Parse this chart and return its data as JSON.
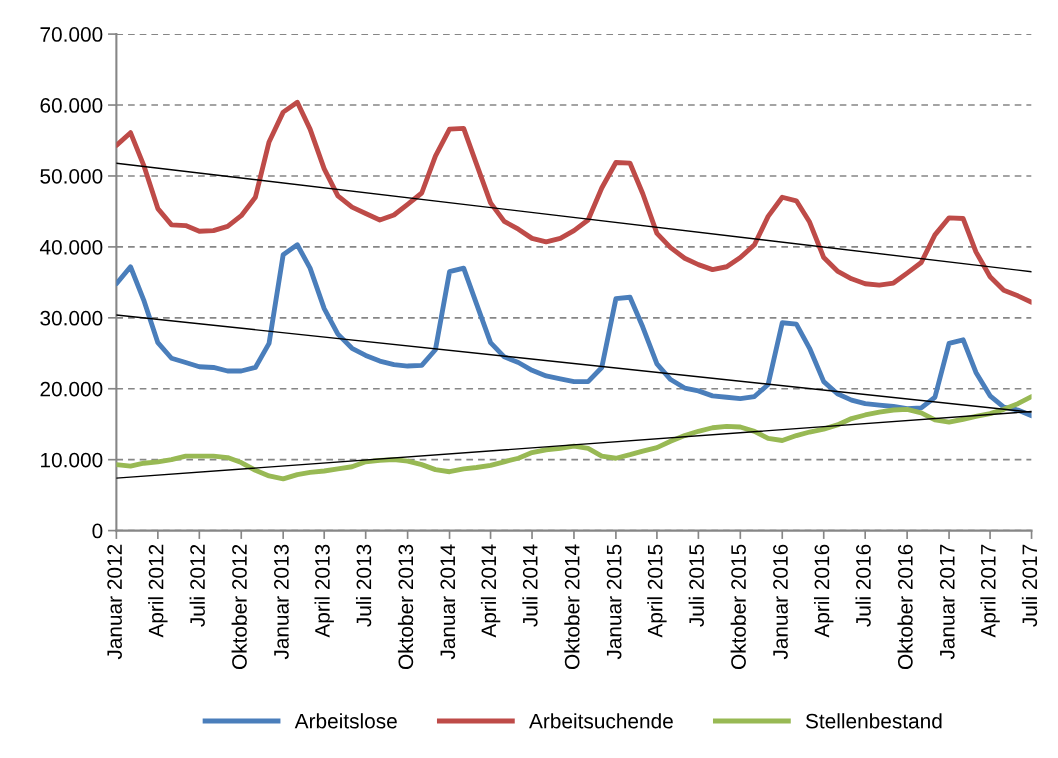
{
  "chart_data": {
    "type": "line",
    "x": [
      "2012-01",
      "2012-02",
      "2012-03",
      "2012-04",
      "2012-05",
      "2012-06",
      "2012-07",
      "2012-08",
      "2012-09",
      "2012-10",
      "2012-11",
      "2012-12",
      "2013-01",
      "2013-02",
      "2013-03",
      "2013-04",
      "2013-05",
      "2013-06",
      "2013-07",
      "2013-08",
      "2013-09",
      "2013-10",
      "2013-11",
      "2013-12",
      "2014-01",
      "2014-02",
      "2014-03",
      "2014-04",
      "2014-05",
      "2014-06",
      "2014-07",
      "2014-08",
      "2014-09",
      "2014-10",
      "2014-11",
      "2014-12",
      "2015-01",
      "2015-02",
      "2015-03",
      "2015-04",
      "2015-05",
      "2015-06",
      "2015-07",
      "2015-08",
      "2015-09",
      "2015-10",
      "2015-11",
      "2015-12",
      "2016-01",
      "2016-02",
      "2016-03",
      "2016-04",
      "2016-05",
      "2016-06",
      "2016-07",
      "2016-08",
      "2016-09",
      "2016-10",
      "2016-11",
      "2016-12",
      "2017-01",
      "2017-02",
      "2017-03",
      "2017-04",
      "2017-05",
      "2017-06",
      "2017-07"
    ],
    "series": [
      {
        "name": "Arbeitslose",
        "color": "#4a7ebb",
        "values": [
          34800,
          37200,
          32500,
          26500,
          24300,
          23700,
          23100,
          23000,
          22500,
          22500,
          23000,
          26400,
          38900,
          40300,
          37000,
          31300,
          27700,
          25700,
          24700,
          23900,
          23400,
          23200,
          23300,
          25500,
          36500,
          37000,
          32000,
          26500,
          24500,
          23700,
          22600,
          21800,
          21400,
          21000,
          21000,
          23000,
          32700,
          32900,
          28700,
          23500,
          21300,
          20100,
          19700,
          19000,
          18800,
          18600,
          18900,
          20600,
          29300,
          29100,
          25700,
          21000,
          19300,
          18400,
          17900,
          17700,
          17500,
          17200,
          17300,
          18800,
          26400,
          26900,
          22300,
          19000,
          17400,
          17000,
          16200
        ]
      },
      {
        "name": "Arbeitsuchende",
        "color": "#be4b48",
        "values": [
          54300,
          56100,
          51500,
          45400,
          43100,
          43000,
          42200,
          42300,
          42900,
          44400,
          47000,
          54800,
          59000,
          60400,
          56600,
          51000,
          47200,
          45600,
          44700,
          43800,
          44500,
          46000,
          47600,
          52800,
          56600,
          56700,
          51700,
          46200,
          43600,
          42500,
          41200,
          40700,
          41200,
          42300,
          43800,
          48300,
          51900,
          51800,
          47500,
          41900,
          39900,
          38400,
          37500,
          36800,
          37200,
          38500,
          40300,
          44300,
          47000,
          46500,
          43500,
          38500,
          36600,
          35500,
          34800,
          34600,
          34900,
          36300,
          37800,
          41700,
          44100,
          44000,
          39300,
          35800,
          33900,
          33100,
          32200
        ]
      },
      {
        "name": "Stellenbestand",
        "color": "#98b954",
        "values": [
          9300,
          9100,
          9500,
          9700,
          10000,
          10500,
          10500,
          10500,
          10300,
          9600,
          8500,
          7700,
          7300,
          7900,
          8200,
          8400,
          8700,
          9000,
          9700,
          9900,
          10000,
          9800,
          9300,
          8600,
          8300,
          8700,
          8900,
          9200,
          9700,
          10200,
          11000,
          11400,
          11600,
          11900,
          11600,
          10500,
          10200,
          10700,
          11200,
          11700,
          12600,
          13400,
          14000,
          14500,
          14700,
          14600,
          14000,
          13000,
          12700,
          13400,
          13900,
          14300,
          14900,
          15800,
          16300,
          16700,
          17000,
          17100,
          16600,
          15600,
          15300,
          15700,
          16100,
          16500,
          17100,
          17900,
          18900
        ]
      },
      {
        "color": "#000000",
        "x": [
          "2012-01",
          "2017-07"
        ],
        "values": [
          51800,
          36500
        ]
      },
      {
        "color": "#000000",
        "x": [
          "2012-01",
          "2017-07"
        ],
        "values": [
          30400,
          16700
        ]
      },
      {
        "color": "#000000",
        "x": [
          "2012-01",
          "2017-07"
        ],
        "values": [
          7400,
          16800
        ]
      }
    ],
    "xlim": [
      "2012-01",
      "2017-07"
    ],
    "xticks": [
      {
        "value": "2012-01",
        "label": "Januar 2012"
      },
      {
        "value": "2012-04",
        "label": "April 2012"
      },
      {
        "value": "2012-07",
        "label": "Juli 2012"
      },
      {
        "value": "2012-10",
        "label": "Oktober 2012"
      },
      {
        "value": "2013-01",
        "label": "Januar 2013"
      },
      {
        "value": "2013-04",
        "label": "April 2013"
      },
      {
        "value": "2013-07",
        "label": "Juli 2013"
      },
      {
        "value": "2013-10",
        "label": "Oktober 2013"
      },
      {
        "value": "2014-01",
        "label": "Januar 2014"
      },
      {
        "value": "2014-04",
        "label": "April 2014"
      },
      {
        "value": "2014-07",
        "label": "Juli 2014"
      },
      {
        "value": "2014-10",
        "label": "Oktober 2014"
      },
      {
        "value": "2015-01",
        "label": "Januar 2015"
      },
      {
        "value": "2015-04",
        "label": "April 2015"
      },
      {
        "value": "2015-07",
        "label": "Juli 2015"
      },
      {
        "value": "2015-10",
        "label": "Oktober 2015"
      },
      {
        "value": "2016-01",
        "label": "Januar 2016"
      },
      {
        "value": "2016-04",
        "label": "April 2016"
      },
      {
        "value": "2016-07",
        "label": "Juli 2016"
      },
      {
        "value": "2016-10",
        "label": "Oktober 2016"
      },
      {
        "value": "2017-01",
        "label": "Januar 2017"
      },
      {
        "value": "2017-04",
        "label": "April 2017"
      },
      {
        "value": "2017-07",
        "label": "Juli 2017"
      }
    ],
    "ylim": [
      0,
      70000
    ],
    "yticks": [
      0,
      {
        "value": 10000,
        "label": "10.000"
      },
      {
        "value": 20000,
        "label": "20.000"
      },
      {
        "value": 30000,
        "label": "30.000"
      },
      {
        "value": 40000,
        "label": "40.000"
      },
      {
        "value": 50000,
        "label": "50.000"
      },
      {
        "value": 60000,
        "label": "60.000"
      },
      {
        "value": 70000,
        "label": "70.000"
      }
    ],
    "grid": "y",
    "legend": "bottom"
  }
}
